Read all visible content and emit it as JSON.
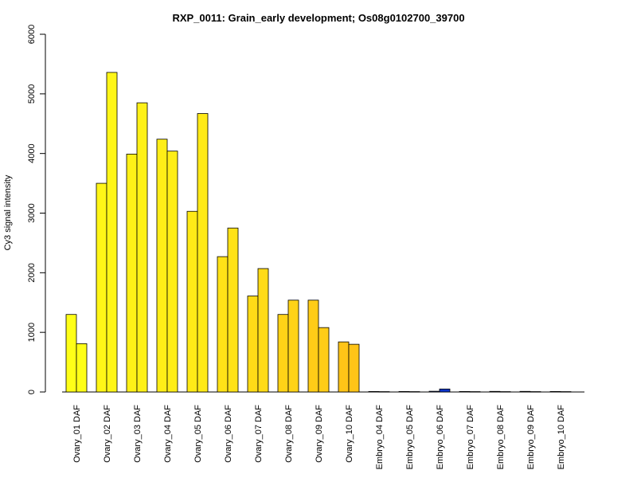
{
  "chart_data": {
    "type": "bar",
    "title": "RXP_0011: Grain_early development; Os08g0102700_39700",
    "xlabel": "",
    "ylabel": "Cy3 signal intensity",
    "ylim": [
      0,
      6000
    ],
    "yticks": [
      0,
      1000,
      2000,
      3000,
      4000,
      5000,
      6000
    ],
    "grid": false,
    "legend": "none",
    "categories": [
      "Ovary_01 DAF",
      "Ovary_02 DAF",
      "Ovary_03 DAF",
      "Ovary_04 DAF",
      "Ovary_05 DAF",
      "Ovary_06 DAF",
      "Ovary_07 DAF",
      "Ovary_08 DAF",
      "Ovary_09 DAF",
      "Ovary_10 DAF",
      "Embryo_04 DAF",
      "Embryo_05 DAF",
      "Embryo_06 DAF",
      "Embryo_07 DAF",
      "Embryo_08 DAF",
      "Embryo_09 DAF",
      "Embryo_10 DAF"
    ],
    "series": [
      {
        "values": [
          1300,
          3500,
          3990,
          4240,
          3030,
          2270,
          1610,
          1300,
          1540,
          840,
          8,
          8,
          12,
          8,
          10,
          10,
          8
        ]
      },
      {
        "values": [
          810,
          5360,
          4850,
          4040,
          4670,
          2750,
          2070,
          1540,
          1080,
          800,
          6,
          6,
          50,
          6,
          6,
          6,
          6
        ]
      }
    ],
    "bar_colors": [
      "#FFFF17",
      "#FFF617",
      "#FFF117",
      "#FFEE17",
      "#FFEA17",
      "#FFE217",
      "#FFDB17",
      "#FFD317",
      "#FFCC17",
      "#FFC417",
      "#1E3C8C",
      "#1E3C8C",
      "#0A32C8",
      "#1E3C8C",
      "#1E3C8C",
      "#1E3C8C",
      "#1E3C8C"
    ]
  }
}
